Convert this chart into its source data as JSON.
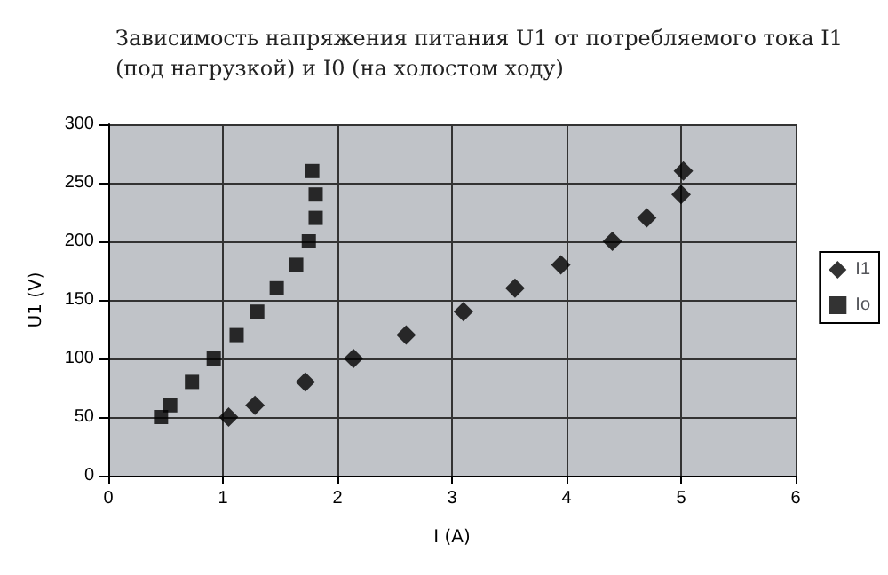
{
  "chart_data": {
    "type": "scatter",
    "title": "Зависимость напряжения питания U1 от потребляемого тока I1\n(под нагрузкой) и I0 (на холостом ходу)",
    "xlabel": "I (A)",
    "ylabel": "U1 (V)",
    "series": [
      {
        "name": "I1",
        "color": "#000000",
        "marker": "diamond",
        "x": [
          1.05,
          1.28,
          1.72,
          2.14,
          2.6,
          3.1,
          3.55,
          3.95,
          4.4,
          4.7,
          5.0,
          5.02
        ],
        "values": [
          50,
          60,
          80,
          100,
          120,
          140,
          160,
          180,
          200,
          220,
          240,
          260
        ]
      },
      {
        "name": "Io",
        "color": "#000000",
        "marker": "square",
        "x": [
          0.46,
          0.54,
          0.73,
          0.92,
          1.12,
          1.3,
          1.47,
          1.64,
          1.75,
          1.81,
          1.81,
          1.78
        ],
        "values": [
          50,
          60,
          80,
          100,
          120,
          140,
          160,
          180,
          200,
          220,
          240,
          260
        ]
      }
    ],
    "xlim": [
      0,
      6
    ],
    "xticks": [
      0,
      1,
      2,
      3,
      4,
      5,
      6
    ],
    "ylim": [
      0,
      300
    ],
    "yticks": [
      0,
      50,
      100,
      150,
      200,
      250,
      300
    ],
    "grid": true,
    "legend": "right"
  }
}
